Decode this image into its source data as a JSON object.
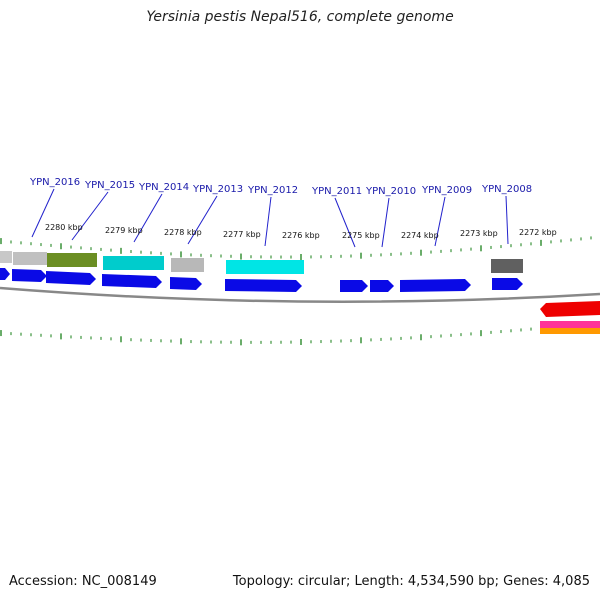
{
  "title": "Yersinia pestis Nepal516, complete genome",
  "accession": "Accession: NC_008149",
  "summary": "Topology: circular; Length: 4,534,590 bp; Genes: 4,085",
  "gene_labels": [
    "YPN_2016",
    "YPN_2015",
    "YPN_2014",
    "YPN_2013",
    "YPN_2012",
    "YPN_2011",
    "YPN_2010",
    "YPN_2009",
    "YPN_2008"
  ],
  "kbp_labels": [
    "2280 kbp",
    "2279 kbp",
    "2278 kbp",
    "2277 kbp",
    "2276 kbp",
    "2275 kbp",
    "2274 kbp",
    "2273 kbp",
    "2272 kbp"
  ],
  "colors": {
    "cds": "#0a0ae6",
    "olive": "#6b8e23",
    "cyan": "#00cccc",
    "gray": "#b8b8b8",
    "dark_gray": "#606060",
    "red": "#ee0000",
    "pink": "#ff3399",
    "orange": "#ff9900",
    "tick": "#2a8a2a",
    "label_line": "#2222cc",
    "backbone": "#888888"
  }
}
